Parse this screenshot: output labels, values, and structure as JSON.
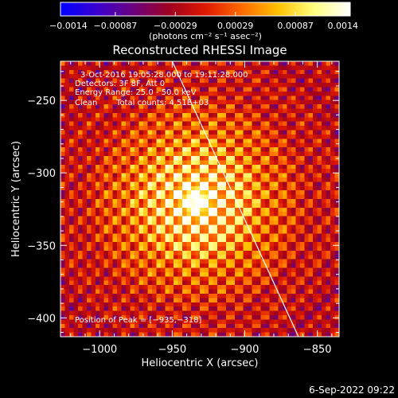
{
  "chart_data": {
    "type": "heatmap",
    "title": "Reconstructed RHESSI Image",
    "xlabel": "Heliocentric X (arcsec)",
    "ylabel": "Heliocentric Y (arcsec)",
    "xlim": [
      -1027,
      -835
    ],
    "ylim": [
      -413,
      -223
    ],
    "x_ticks": [
      -1000,
      -950,
      -900,
      -850
    ],
    "x_tick_labels": [
      "−1000",
      "−950",
      "−900",
      "−850"
    ],
    "y_ticks": [
      -250,
      -300,
      -350,
      -400
    ],
    "y_tick_labels": [
      "−250",
      "−300",
      "−350",
      "−400"
    ],
    "colorbar": {
      "min": -0.0014,
      "max": 0.0014,
      "ticks": [
        -0.0014,
        -0.00087,
        -0.00029,
        0.00029,
        0.00087,
        0.0014
      ],
      "tick_labels": [
        "−0.0014",
        "−0.00087",
        "−0.00029",
        "0.00029",
        "0.00087",
        "0.0014"
      ],
      "units": "(photons cm⁻² s⁻¹ asec⁻²)",
      "colors": [
        "#0000ff",
        "#3a00d0",
        "#6a0080",
        "#a00020",
        "#dd1800",
        "#ff6a00",
        "#ffc000",
        "#ffff80",
        "#ffffff"
      ]
    },
    "peak": {
      "x": -935,
      "y": -318
    },
    "annotations": {
      "time": "3-Oct-2016 19:05:28.000 to 19:11:28.000",
      "detectors": "Detectors: 3F 8F, Att 0",
      "energy": "Energy Range: 25.0 - 50.0 keV",
      "clean": "Clean",
      "counts": "Total counts: 4.51E+03",
      "peak_label": "Position of Peak = [−935,−318]"
    },
    "limb_line": {
      "x1": -950,
      "y1": -223,
      "x2": -863,
      "y2": -413,
      "color": "#ffffff"
    }
  },
  "footer": {
    "timestamp": "6-Sep-2022 09:22"
  }
}
